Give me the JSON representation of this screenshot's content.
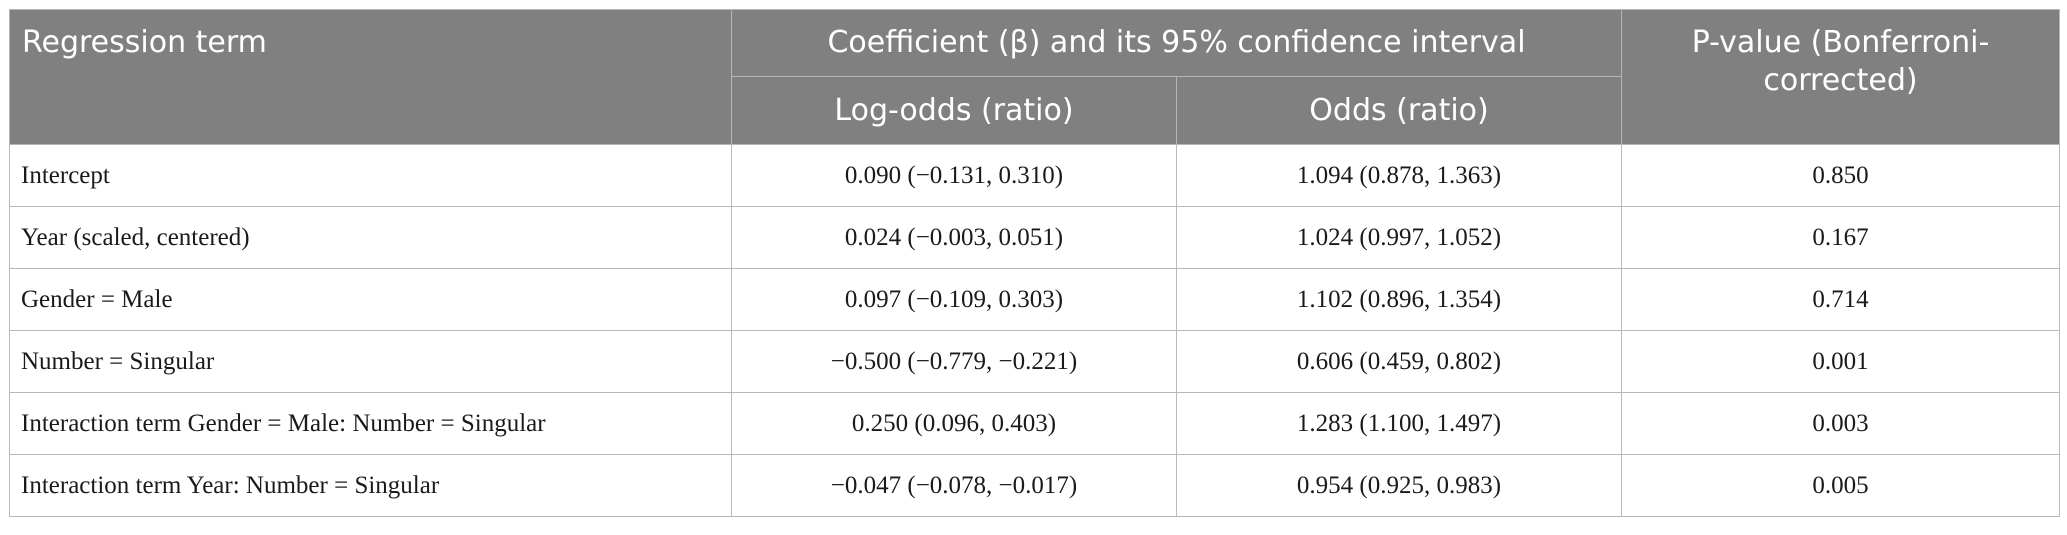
{
  "header": {
    "term": "Regression term",
    "coefficient_group": "Coefficient (β) and its 95% confidence interval",
    "log_odds": "Log-odds (ratio)",
    "odds": "Odds (ratio)",
    "p_value": "P-value (Bonferroni-corrected)"
  },
  "rows": [
    {
      "term": "Intercept",
      "log_odds": "0.090 (−0.131, 0.310)",
      "odds": "1.094 (0.878, 1.363)",
      "p": "0.850"
    },
    {
      "term": "Year (scaled, centered)",
      "log_odds": "0.024 (−0.003, 0.051)",
      "odds": "1.024 (0.997, 1.052)",
      "p": "0.167"
    },
    {
      "term": "Gender = Male",
      "log_odds": "0.097 (−0.109, 0.303)",
      "odds": "1.102 (0.896, 1.354)",
      "p": "0.714"
    },
    {
      "term": "Number = Singular",
      "log_odds": "−0.500 (−0.779, −0.221)",
      "odds": "0.606 (0.459, 0.802)",
      "p": "0.001"
    },
    {
      "term": "Interaction term Gender = Male: Number = Singular",
      "log_odds": "0.250 (0.096, 0.403)",
      "odds": "1.283 (1.100, 1.497)",
      "p": "0.003"
    },
    {
      "term": "Interaction term Year: Number = Singular",
      "log_odds": "−0.047 (−0.078, −0.017)",
      "odds": "0.954 (0.925, 0.983)",
      "p": "0.005"
    }
  ],
  "colors": {
    "header_bg": "#7f807f",
    "header_text": "#ffffff",
    "border": "#b9b9b9"
  }
}
